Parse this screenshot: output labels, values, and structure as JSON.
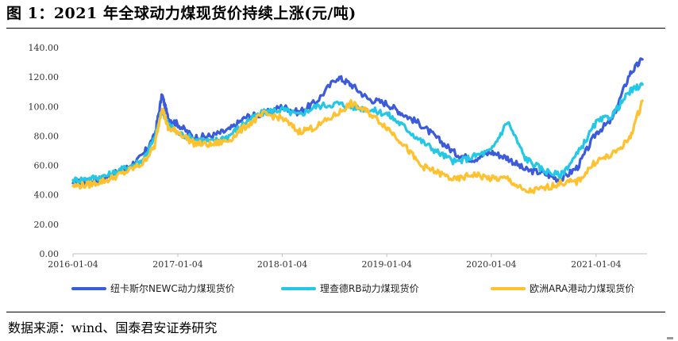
{
  "header": {
    "title": "图 1：2021 年全球动力煤现货价持续上涨(元/吨)"
  },
  "footer": {
    "source": "数据来源：wind、国泰君安证券研究"
  },
  "chart_data": {
    "type": "line",
    "title": "图 1：2021 年全球动力煤现货价持续上涨(元/吨)",
    "xlabel": "",
    "ylabel": "",
    "ylim": [
      0,
      140
    ],
    "y_ticks": [
      "0.00",
      "20.00",
      "40.00",
      "60.00",
      "80.00",
      "100.00",
      "120.00",
      "140.00"
    ],
    "x_ticks": [
      "2016-01-04",
      "2017-01-04",
      "2018-01-04",
      "2019-01-04",
      "2020-01-04",
      "2021-01-04"
    ],
    "grid": false,
    "legend_position": "bottom",
    "series": [
      {
        "name": "纽卡斯尔NEWC动力煤现货价",
        "color": "#3b5bdb",
        "points": [
          [
            "2016-01-04",
            48
          ],
          [
            "2016-03-01",
            49
          ],
          [
            "2016-05-01",
            52
          ],
          [
            "2016-07-01",
            57
          ],
          [
            "2016-09-01",
            66
          ],
          [
            "2016-10-15",
            80
          ],
          [
            "2016-11-10",
            108
          ],
          [
            "2016-12-01",
            92
          ],
          [
            "2017-01-04",
            88
          ],
          [
            "2017-03-01",
            79
          ],
          [
            "2017-05-01",
            80
          ],
          [
            "2017-07-01",
            84
          ],
          [
            "2017-09-01",
            93
          ],
          [
            "2017-11-01",
            95
          ],
          [
            "2018-01-04",
            100
          ],
          [
            "2018-03-01",
            96
          ],
          [
            "2018-05-01",
            103
          ],
          [
            "2018-07-15",
            120
          ],
          [
            "2018-09-01",
            115
          ],
          [
            "2018-11-01",
            105
          ],
          [
            "2019-01-04",
            102
          ],
          [
            "2019-03-01",
            95
          ],
          [
            "2019-05-01",
            88
          ],
          [
            "2019-07-01",
            78
          ],
          [
            "2019-09-01",
            68
          ],
          [
            "2019-11-01",
            64
          ],
          [
            "2020-01-04",
            69
          ],
          [
            "2020-03-01",
            65
          ],
          [
            "2020-05-01",
            57
          ],
          [
            "2020-07-01",
            55
          ],
          [
            "2020-09-01",
            50
          ],
          [
            "2020-11-01",
            59
          ],
          [
            "2021-01-04",
            82
          ],
          [
            "2021-03-01",
            91
          ],
          [
            "2021-05-01",
            122
          ],
          [
            "2021-06-15",
            132
          ]
        ]
      },
      {
        "name": "理查德RB动力煤现货价",
        "color": "#22c8e5",
        "points": [
          [
            "2016-01-04",
            50
          ],
          [
            "2016-03-01",
            51
          ],
          [
            "2016-05-01",
            53
          ],
          [
            "2016-07-01",
            58
          ],
          [
            "2016-09-01",
            63
          ],
          [
            "2016-10-15",
            78
          ],
          [
            "2016-11-10",
            98
          ],
          [
            "2016-12-01",
            88
          ],
          [
            "2017-01-04",
            82
          ],
          [
            "2017-03-01",
            78
          ],
          [
            "2017-05-01",
            76
          ],
          [
            "2017-07-01",
            80
          ],
          [
            "2017-09-01",
            90
          ],
          [
            "2017-11-01",
            96
          ],
          [
            "2018-01-04",
            98
          ],
          [
            "2018-03-01",
            94
          ],
          [
            "2018-05-01",
            100
          ],
          [
            "2018-07-15",
            102
          ],
          [
            "2018-09-01",
            100
          ],
          [
            "2018-11-01",
            98
          ],
          [
            "2019-01-04",
            95
          ],
          [
            "2019-03-01",
            87
          ],
          [
            "2019-05-01",
            77
          ],
          [
            "2019-07-01",
            69
          ],
          [
            "2019-09-01",
            62
          ],
          [
            "2019-11-01",
            66
          ],
          [
            "2020-01-04",
            70
          ],
          [
            "2020-03-01",
            90
          ],
          [
            "2020-05-01",
            65
          ],
          [
            "2020-07-01",
            57
          ],
          [
            "2020-09-01",
            53
          ],
          [
            "2020-11-01",
            68
          ],
          [
            "2021-01-04",
            89
          ],
          [
            "2021-03-01",
            94
          ],
          [
            "2021-05-01",
            110
          ],
          [
            "2021-06-15",
            115
          ]
        ]
      },
      {
        "name": "欧洲ARA港动力煤现货价",
        "color": "#ffc12e",
        "points": [
          [
            "2016-01-04",
            46
          ],
          [
            "2016-03-01",
            47
          ],
          [
            "2016-05-01",
            50
          ],
          [
            "2016-07-01",
            55
          ],
          [
            "2016-09-01",
            61
          ],
          [
            "2016-10-15",
            73
          ],
          [
            "2016-11-10",
            100
          ],
          [
            "2016-12-01",
            85
          ],
          [
            "2017-01-04",
            83
          ],
          [
            "2017-03-01",
            75
          ],
          [
            "2017-05-01",
            74
          ],
          [
            "2017-07-01",
            77
          ],
          [
            "2017-09-01",
            87
          ],
          [
            "2017-11-01",
            95
          ],
          [
            "2018-01-04",
            92
          ],
          [
            "2018-03-01",
            83
          ],
          [
            "2018-05-01",
            86
          ],
          [
            "2018-07-15",
            95
          ],
          [
            "2018-09-01",
            102
          ],
          [
            "2018-11-01",
            96
          ],
          [
            "2019-01-04",
            86
          ],
          [
            "2019-03-01",
            75
          ],
          [
            "2019-05-01",
            60
          ],
          [
            "2019-07-01",
            55
          ],
          [
            "2019-09-01",
            50
          ],
          [
            "2019-11-01",
            54
          ],
          [
            "2020-01-04",
            51
          ],
          [
            "2020-03-01",
            51
          ],
          [
            "2020-05-01",
            42
          ],
          [
            "2020-07-01",
            44
          ],
          [
            "2020-09-01",
            48
          ],
          [
            "2020-11-01",
            49
          ],
          [
            "2021-01-04",
            63
          ],
          [
            "2021-03-01",
            67
          ],
          [
            "2021-05-01",
            78
          ],
          [
            "2021-06-15",
            104
          ]
        ]
      }
    ]
  }
}
